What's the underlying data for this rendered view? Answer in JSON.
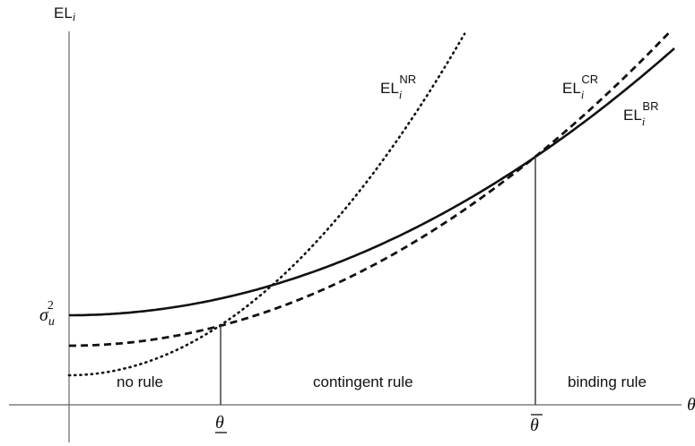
{
  "y_axis": {
    "label_main": "EL",
    "label_sub": "i"
  },
  "x_axis": {
    "label": "θ"
  },
  "curves": [
    {
      "id": "NR",
      "main": "EL",
      "sub": "i",
      "sup": "NR",
      "style": "dotted"
    },
    {
      "id": "CR",
      "main": "EL",
      "sub": "i",
      "sup": "CR",
      "style": "dashed"
    },
    {
      "id": "BR",
      "main": "EL",
      "sub": "i",
      "sup": "BR",
      "style": "solid"
    }
  ],
  "y_tick": {
    "main": "σ",
    "sub": "u",
    "sup": "2"
  },
  "x_ticks": {
    "lower": {
      "label": "θ",
      "mark": "underline"
    },
    "upper": {
      "label": "θ",
      "mark": "overline"
    }
  },
  "regions": {
    "left": "no rule",
    "middle": "contingent rule",
    "right": "binding rule"
  }
}
